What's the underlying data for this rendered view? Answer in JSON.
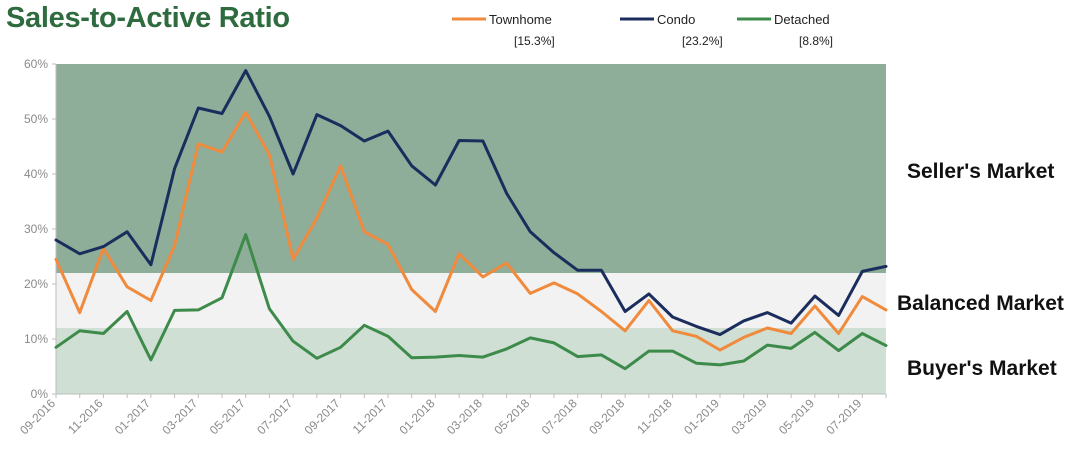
{
  "chart_data": {
    "type": "line",
    "title": "Sales-to-Active Ratio",
    "y_ticks": [
      "0%",
      "10%",
      "20%",
      "30%",
      "40%",
      "50%",
      "60%"
    ],
    "ylim": [
      0,
      60
    ],
    "x_tick_labels": [
      "09-2016",
      "11-2016",
      "01-2017",
      "03-2017",
      "05-2017",
      "07-2017",
      "09-2017",
      "11-2017",
      "01-2018",
      "03-2018",
      "05-2018",
      "07-2018",
      "09-2018",
      "11-2018",
      "01-2019",
      "03-2019",
      "05-2019",
      "07-2019"
    ],
    "categories": [
      "09-2016",
      "10-2016",
      "11-2016",
      "12-2016",
      "01-2017",
      "02-2017",
      "03-2017",
      "04-2017",
      "05-2017",
      "06-2017",
      "07-2017",
      "08-2017",
      "09-2017",
      "10-2017",
      "11-2017",
      "12-2017",
      "01-2018",
      "02-2018",
      "03-2018",
      "04-2018",
      "05-2018",
      "06-2018",
      "07-2018",
      "08-2018",
      "09-2018",
      "10-2018",
      "11-2018",
      "12-2018",
      "01-2019",
      "02-2019",
      "03-2019",
      "04-2019",
      "05-2019",
      "06-2019",
      "07-2019",
      "08-2019"
    ],
    "zones": [
      {
        "name": "Buyer's Market",
        "from": 0,
        "to": 12,
        "color": "#cfdfd3"
      },
      {
        "name": "Balanced Market",
        "from": 12,
        "to": 22,
        "color": "#f2f2f2"
      },
      {
        "name": "Seller's Market",
        "from": 22,
        "to": 60,
        "color": "#8eae9a"
      }
    ],
    "series": [
      {
        "name": "Townhome",
        "legend_value": "[15.3%]",
        "color": "#f08a3c",
        "values": [
          24.5,
          14.8,
          26.5,
          19.5,
          17,
          27,
          45.5,
          44,
          51.2,
          43.5,
          24.5,
          32,
          41.5,
          29.5,
          27.2,
          19,
          15,
          25.5,
          21.3,
          23.8,
          18.3,
          20.2,
          18.2,
          15,
          11.5,
          17,
          11.5,
          10.5,
          8,
          10.3,
          12,
          11,
          16,
          11,
          17.7,
          15.3
        ]
      },
      {
        "name": "Condo",
        "legend_value": "[23.2%]",
        "color": "#1b2d5c",
        "values": [
          28,
          25.5,
          26.8,
          29.5,
          23.5,
          41,
          52,
          51,
          58.8,
          50.5,
          40,
          50.8,
          48.8,
          46,
          47.8,
          41.5,
          38,
          46.1,
          46,
          36.5,
          29.5,
          25.7,
          22.5,
          22.5,
          15,
          18.2,
          14,
          12.3,
          10.8,
          13.3,
          14.8,
          12.9,
          17.8,
          14.3,
          22.3,
          23.2
        ]
      },
      {
        "name": "Detached",
        "legend_value": "[8.8%]",
        "color": "#3d8b4a",
        "values": [
          8.5,
          11.5,
          11,
          15,
          6.2,
          15.2,
          15.3,
          17.5,
          29,
          15.5,
          9.6,
          6.5,
          8.5,
          12.5,
          10.5,
          6.6,
          6.7,
          7,
          6.7,
          8.2,
          10.2,
          9.3,
          6.8,
          7.1,
          4.6,
          7.8,
          7.8,
          5.6,
          5.3,
          6,
          8.9,
          8.3,
          11.2,
          7.9,
          11,
          8.8
        ]
      }
    ]
  }
}
